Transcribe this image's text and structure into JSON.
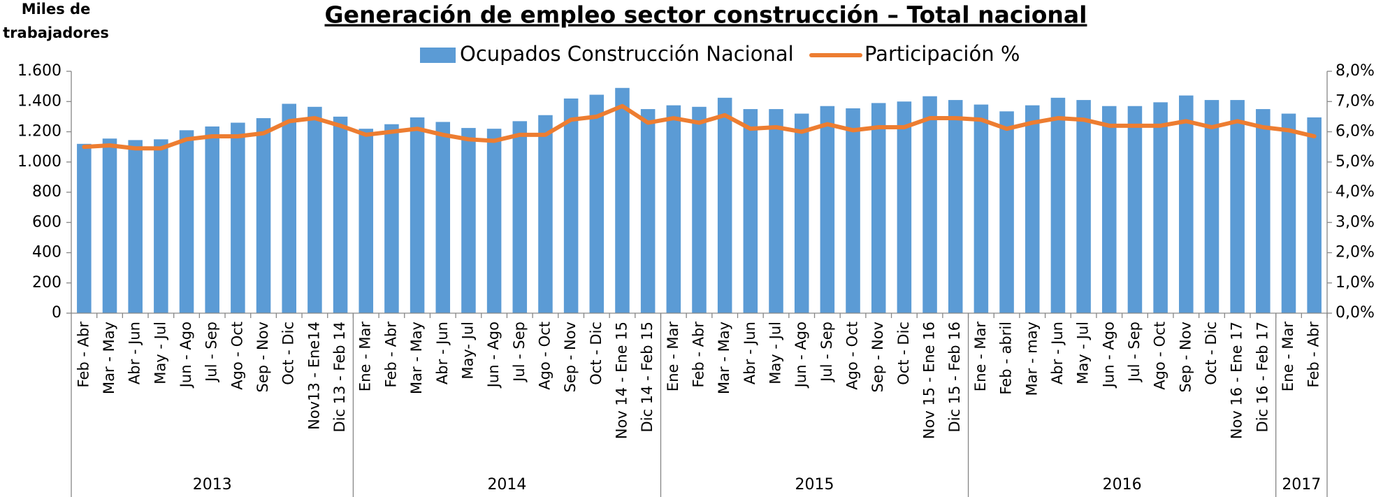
{
  "chart_data": {
    "type": "bar_line",
    "title": "Generación de empleo sector construcción – Total nacional",
    "y_axis_label": "Miles de trabajadores",
    "groups": [
      {
        "label": "2013",
        "categories": [
          "Feb - Abr",
          "Mar - May",
          "Abr - Jun",
          "May - Jul",
          "Jun - Ago",
          "Jul - Sep",
          "Ago - Oct",
          "Sep - Nov",
          "Oct - Dic",
          "Nov13 - Ene14",
          "Dic 13 - Feb 14"
        ]
      },
      {
        "label": "2014",
        "categories": [
          "Ene - Mar",
          "Feb - Abr",
          "Mar - May",
          "Abr - Jun",
          "May- Jul",
          "Jun - Ago",
          "Jul - Sep",
          "Ago - Oct",
          "Sep - Nov",
          "Oct - Dic",
          "Nov 14 - Ene 15",
          "Dic 14 - Feb 15"
        ]
      },
      {
        "label": "2015",
        "categories": [
          "Ene - Mar",
          "Feb - Abr",
          "Mar - May",
          "Abr - Jun",
          "May - Jul",
          "Jun - Ago",
          "Jul - Sep",
          "Ago - Oct",
          "Sep - Nov",
          "Oct - Dic",
          "Nov 15 - Ene 16",
          "Dic 15 - Feb 16"
        ]
      },
      {
        "label": "2016",
        "categories": [
          "Ene - Mar",
          "Feb - abril",
          "Mar - may",
          "Abr - Jun",
          "May - Jul",
          "Jun - Ago",
          "Jul - Sep",
          "Ago - Oct",
          "Sep - Nov",
          "Oct - Dic",
          "Nov 16 - Ene 17",
          "Dic 16 - Feb 17"
        ]
      },
      {
        "label": "2017",
        "categories": [
          "Ene - Mar",
          "Feb - Abr"
        ]
      }
    ],
    "series": [
      {
        "name": "Ocupados Construcción Nacional",
        "type": "bar",
        "color": "#5b9bd5",
        "values": [
          1120,
          1155,
          1145,
          1150,
          1210,
          1235,
          1260,
          1290,
          1385,
          1365,
          1300,
          1220,
          1250,
          1295,
          1265,
          1225,
          1220,
          1270,
          1310,
          1420,
          1445,
          1490,
          1350,
          1375,
          1365,
          1425,
          1350,
          1350,
          1320,
          1370,
          1355,
          1390,
          1400,
          1435,
          1410,
          1380,
          1335,
          1375,
          1425,
          1410,
          1370,
          1370,
          1395,
          1440,
          1410,
          1410,
          1350,
          1320,
          1295
        ]
      },
      {
        "name": "Participación %",
        "type": "line",
        "axis": "y2",
        "color": "#ed7d31",
        "values": [
          5.5,
          5.55,
          5.45,
          5.45,
          5.75,
          5.85,
          5.85,
          5.95,
          6.35,
          6.45,
          6.2,
          5.9,
          6.0,
          6.1,
          5.9,
          5.75,
          5.7,
          5.9,
          5.9,
          6.4,
          6.5,
          6.85,
          6.3,
          6.45,
          6.3,
          6.55,
          6.1,
          6.15,
          6.0,
          6.25,
          6.05,
          6.15,
          6.15,
          6.45,
          6.45,
          6.4,
          6.1,
          6.3,
          6.45,
          6.4,
          6.2,
          6.2,
          6.2,
          6.35,
          6.15,
          6.35,
          6.15,
          6.05,
          5.85
        ]
      }
    ],
    "ylim": [
      0,
      1600
    ],
    "yticks": [
      0,
      200,
      400,
      600,
      800,
      {
        "value": 1000,
        "label": "1.000"
      },
      {
        "value": 1200,
        "label": "1.200"
      },
      {
        "value": 1400,
        "label": "1.400"
      },
      {
        "value": 1600,
        "label": "1.600"
      }
    ],
    "y2lim": [
      0,
      8
    ],
    "y2ticks": [
      {
        "value": 0,
        "label": "0,0%"
      },
      {
        "value": 1,
        "label": "1,0%"
      },
      {
        "value": 2,
        "label": "2,0%"
      },
      {
        "value": 3,
        "label": "3,0%"
      },
      {
        "value": 4,
        "label": "4,0%"
      },
      {
        "value": 5,
        "label": "5,0%"
      },
      {
        "value": 6,
        "label": "6,0%"
      },
      {
        "value": 7,
        "label": "7,0%"
      },
      {
        "value": 8,
        "label": "8,0%"
      }
    ],
    "legend": "top"
  }
}
